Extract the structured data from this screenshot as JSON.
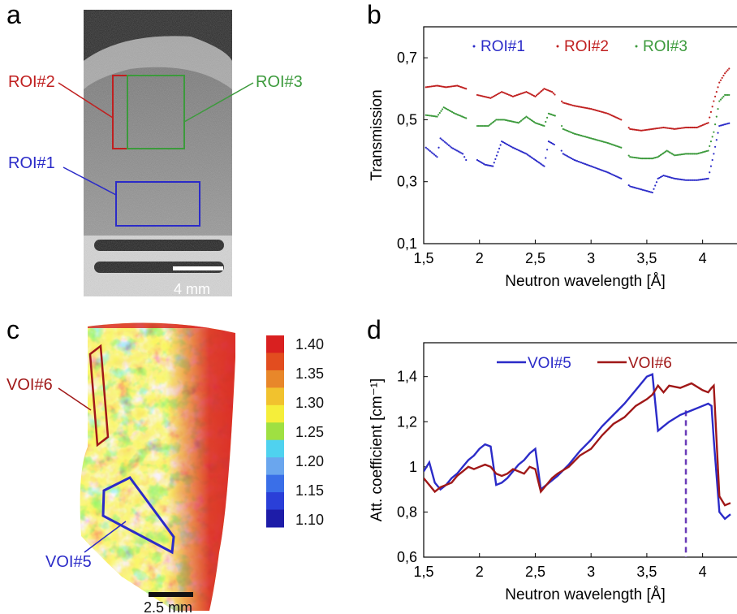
{
  "panels": {
    "a": "a",
    "b": "b",
    "c": "c",
    "d": "d"
  },
  "panel_a": {
    "roi_labels": [
      "ROI#2",
      "ROI#3",
      "ROI#1"
    ],
    "scale_bar_label": "4 mm",
    "colors": {
      "roi1": "#2b2bc8",
      "roi2": "#c02020",
      "roi3": "#3c9a3c"
    }
  },
  "panel_c": {
    "voi_labels": [
      "VOI#6",
      "VOI#5"
    ],
    "scale_bar_label": "2.5 mm",
    "colorbar_ticks": [
      "1.40",
      "1.35",
      "1.30",
      "1.25",
      "1.20",
      "1.15",
      "1.10"
    ],
    "colorbar_colors": [
      "#d92020",
      "#e24d1f",
      "#e8872a",
      "#f1c22e",
      "#f5ee3a",
      "#9fe042",
      "#4fd2ef",
      "#6aa6ee",
      "#3a6fe8",
      "#2a3fd8",
      "#1d1ca8"
    ],
    "colors": {
      "voi5": "#2b2bc8",
      "voi6": "#a01818"
    }
  },
  "chart_data": [
    {
      "type": "scatter",
      "xlabel": "Neutron wavelength [Å]",
      "ylabel": "Transmission",
      "xlim": [
        1.5,
        4.25
      ],
      "ylim": [
        0.1,
        0.8
      ],
      "x_ticks": [
        "1,5",
        "2",
        "2,5",
        "3",
        "3,5",
        "4"
      ],
      "y_ticks": [
        "0,1",
        "0,3",
        "0,5",
        "0,7"
      ],
      "legend_position": "top",
      "series": [
        {
          "name": "ROI#1",
          "color": "#2b2bc8",
          "points": [
            [
              1.52,
              0.41
            ],
            [
              1.62,
              0.38
            ],
            [
              1.65,
              0.44
            ],
            [
              1.75,
              0.41
            ],
            [
              1.85,
              0.39
            ],
            [
              1.88,
              0.37
            ],
            [
              1.98,
              0.37
            ],
            [
              2.05,
              0.355
            ],
            [
              2.12,
              0.35
            ],
            [
              2.2,
              0.43
            ],
            [
              2.3,
              0.41
            ],
            [
              2.42,
              0.39
            ],
            [
              2.5,
              0.37
            ],
            [
              2.58,
              0.35
            ],
            [
              2.62,
              0.43
            ],
            [
              2.72,
              0.41
            ],
            [
              2.75,
              0.39
            ],
            [
              2.85,
              0.37
            ],
            [
              3.0,
              0.35
            ],
            [
              3.15,
              0.33
            ],
            [
              3.27,
              0.31
            ],
            [
              3.35,
              0.285
            ],
            [
              3.45,
              0.275
            ],
            [
              3.55,
              0.265
            ],
            [
              3.6,
              0.31
            ],
            [
              3.65,
              0.32
            ],
            [
              3.75,
              0.31
            ],
            [
              3.85,
              0.305
            ],
            [
              3.95,
              0.305
            ],
            [
              4.05,
              0.31
            ],
            [
              4.1,
              0.39
            ],
            [
              4.15,
              0.48
            ],
            [
              4.25,
              0.49
            ]
          ]
        },
        {
          "name": "ROI#2",
          "color": "#c02020",
          "points": [
            [
              1.52,
              0.605
            ],
            [
              1.62,
              0.61
            ],
            [
              1.7,
              0.605
            ],
            [
              1.8,
              0.61
            ],
            [
              1.88,
              0.6
            ],
            [
              1.98,
              0.58
            ],
            [
              2.1,
              0.57
            ],
            [
              2.2,
              0.59
            ],
            [
              2.3,
              0.575
            ],
            [
              2.42,
              0.59
            ],
            [
              2.5,
              0.575
            ],
            [
              2.58,
              0.6
            ],
            [
              2.65,
              0.59
            ],
            [
              2.75,
              0.555
            ],
            [
              2.85,
              0.545
            ],
            [
              3.0,
              0.535
            ],
            [
              3.15,
              0.52
            ],
            [
              3.27,
              0.5
            ],
            [
              3.35,
              0.47
            ],
            [
              3.45,
              0.465
            ],
            [
              3.55,
              0.47
            ],
            [
              3.65,
              0.475
            ],
            [
              3.75,
              0.47
            ],
            [
              3.85,
              0.475
            ],
            [
              3.95,
              0.475
            ],
            [
              4.05,
              0.49
            ],
            [
              4.1,
              0.56
            ],
            [
              4.15,
              0.62
            ],
            [
              4.2,
              0.65
            ],
            [
              4.25,
              0.67
            ]
          ]
        },
        {
          "name": "ROI#3",
          "color": "#3c9a3c",
          "points": [
            [
              1.52,
              0.515
            ],
            [
              1.62,
              0.51
            ],
            [
              1.68,
              0.54
            ],
            [
              1.78,
              0.52
            ],
            [
              1.88,
              0.505
            ],
            [
              1.98,
              0.48
            ],
            [
              2.08,
              0.48
            ],
            [
              2.15,
              0.5
            ],
            [
              2.22,
              0.5
            ],
            [
              2.35,
              0.49
            ],
            [
              2.42,
              0.51
            ],
            [
              2.5,
              0.49
            ],
            [
              2.58,
              0.48
            ],
            [
              2.62,
              0.52
            ],
            [
              2.7,
              0.51
            ],
            [
              2.75,
              0.47
            ],
            [
              2.85,
              0.455
            ],
            [
              3.0,
              0.44
            ],
            [
              3.15,
              0.425
            ],
            [
              3.27,
              0.41
            ],
            [
              3.35,
              0.38
            ],
            [
              3.45,
              0.375
            ],
            [
              3.55,
              0.375
            ],
            [
              3.6,
              0.38
            ],
            [
              3.68,
              0.4
            ],
            [
              3.75,
              0.385
            ],
            [
              3.85,
              0.39
            ],
            [
              3.95,
              0.39
            ],
            [
              4.05,
              0.4
            ],
            [
              4.1,
              0.46
            ],
            [
              4.15,
              0.56
            ],
            [
              4.2,
              0.58
            ],
            [
              4.25,
              0.58
            ]
          ]
        }
      ]
    },
    {
      "type": "line",
      "xlabel": "Neutron wavelength [Å]",
      "ylabel": "Att. coefficient [cm⁻¹]",
      "xlim": [
        1.5,
        4.25
      ],
      "ylim": [
        0.6,
        1.55
      ],
      "x_ticks": [
        "1,5",
        "2",
        "2,5",
        "3",
        "3,5",
        "4"
      ],
      "y_ticks": [
        "0,6",
        "0,8",
        "1",
        "1,2",
        "1,4"
      ],
      "legend_position": "top",
      "reference_line_x": 3.85,
      "series": [
        {
          "name": "VOI#5",
          "color": "#2b2bc8",
          "x": [
            1.5,
            1.55,
            1.6,
            1.65,
            1.7,
            1.75,
            1.8,
            1.85,
            1.9,
            1.95,
            2.0,
            2.05,
            2.1,
            2.15,
            2.2,
            2.25,
            2.3,
            2.35,
            2.4,
            2.45,
            2.5,
            2.55,
            2.6,
            2.65,
            2.7,
            2.8,
            2.9,
            3.0,
            3.1,
            3.2,
            3.3,
            3.4,
            3.5,
            3.55,
            3.6,
            3.65,
            3.7,
            3.8,
            3.9,
            4.0,
            4.05,
            4.08,
            4.1,
            4.15,
            4.2,
            4.25
          ],
          "y": [
            0.98,
            1.02,
            0.93,
            0.9,
            0.92,
            0.95,
            0.97,
            1.0,
            1.03,
            1.05,
            1.08,
            1.1,
            1.09,
            0.92,
            0.93,
            0.95,
            0.98,
            1.01,
            1.03,
            1.06,
            1.08,
            0.9,
            0.92,
            0.94,
            0.96,
            1.01,
            1.07,
            1.12,
            1.18,
            1.23,
            1.28,
            1.34,
            1.4,
            1.41,
            1.16,
            1.18,
            1.2,
            1.23,
            1.25,
            1.27,
            1.28,
            1.27,
            1.12,
            0.8,
            0.77,
            0.79
          ]
        },
        {
          "name": "VOI#6",
          "color": "#a01818",
          "x": [
            1.5,
            1.55,
            1.6,
            1.65,
            1.7,
            1.75,
            1.8,
            1.85,
            1.9,
            1.95,
            2.0,
            2.05,
            2.1,
            2.15,
            2.2,
            2.25,
            2.3,
            2.35,
            2.4,
            2.45,
            2.5,
            2.55,
            2.6,
            2.65,
            2.7,
            2.8,
            2.9,
            3.0,
            3.1,
            3.2,
            3.3,
            3.4,
            3.5,
            3.55,
            3.6,
            3.65,
            3.7,
            3.8,
            3.9,
            4.0,
            4.05,
            4.08,
            4.1,
            4.15,
            4.2,
            4.25
          ],
          "y": [
            0.95,
            0.92,
            0.89,
            0.91,
            0.92,
            0.93,
            0.96,
            0.98,
            1.0,
            0.99,
            1.0,
            1.01,
            1.0,
            0.97,
            0.96,
            0.97,
            0.99,
            0.98,
            0.97,
            1.0,
            0.99,
            0.89,
            0.92,
            0.95,
            0.97,
            1.0,
            1.05,
            1.08,
            1.14,
            1.19,
            1.22,
            1.27,
            1.3,
            1.32,
            1.36,
            1.33,
            1.36,
            1.35,
            1.37,
            1.34,
            1.33,
            1.35,
            1.36,
            0.87,
            0.83,
            0.84
          ]
        }
      ]
    }
  ]
}
